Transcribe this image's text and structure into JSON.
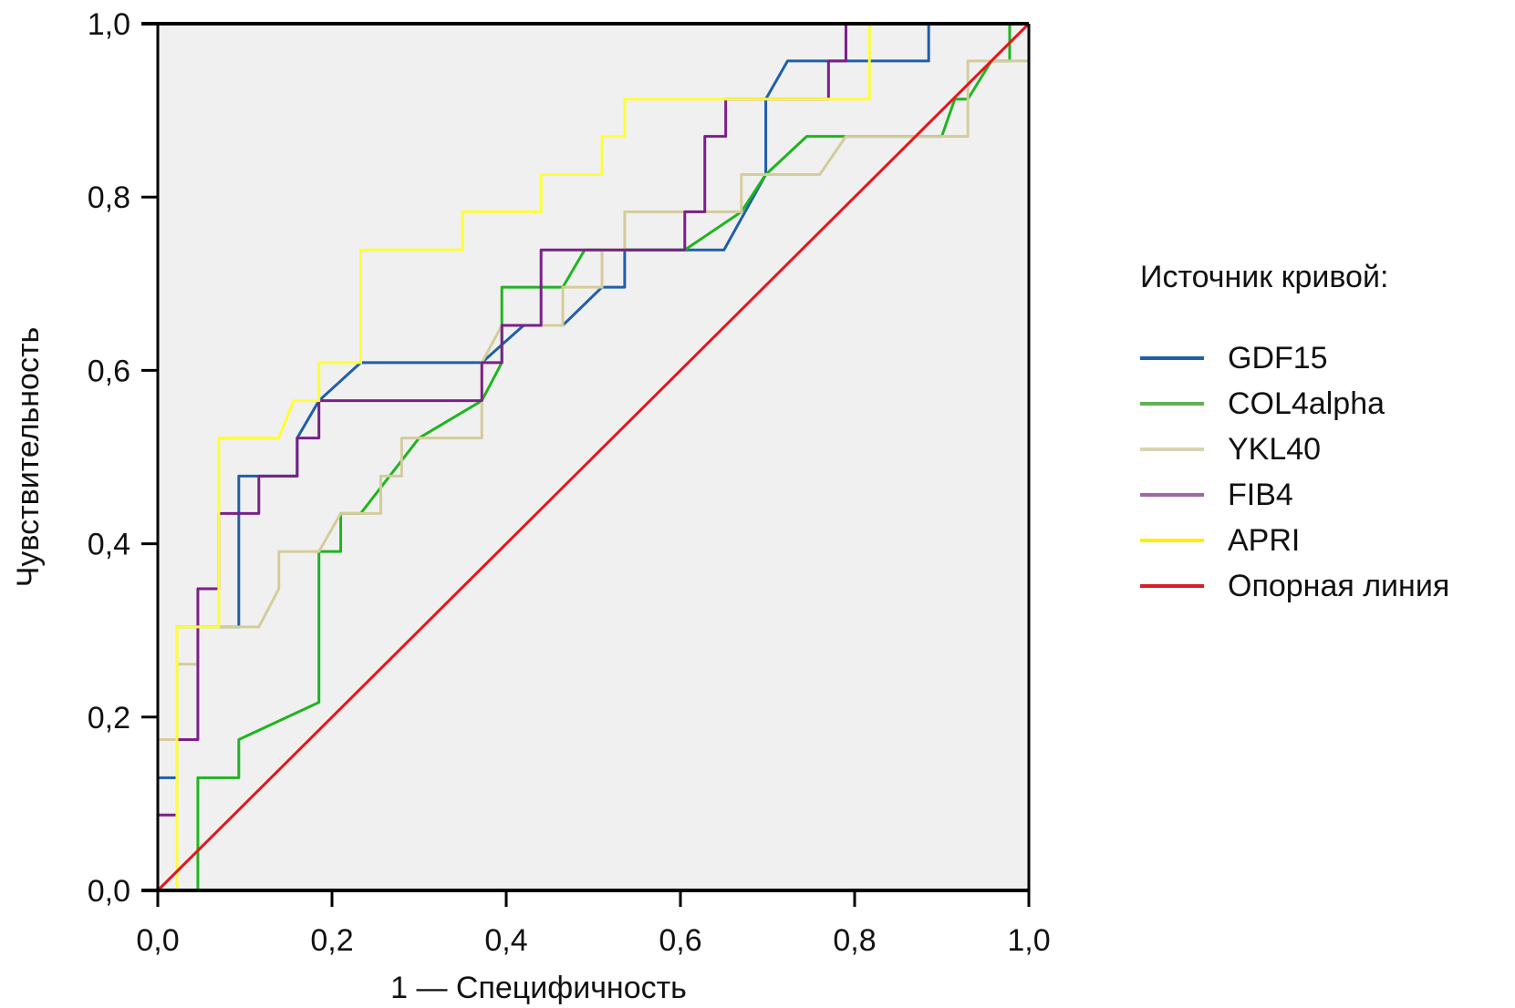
{
  "chart_data": {
    "type": "line",
    "title": "",
    "xlabel": "1 — Специфичность",
    "ylabel": "Чувствительность",
    "xlim": [
      0,
      1
    ],
    "ylim": [
      0,
      1
    ],
    "xticks": [
      "0,0",
      "0,2",
      "0,4",
      "0,6",
      "0,8",
      "1,0"
    ],
    "xtick_values": [
      0,
      0.2,
      0.4,
      0.6,
      0.8,
      1.0
    ],
    "yticks": [
      "0,0",
      "0,2",
      "0,4",
      "0,6",
      "0,8",
      "1,0"
    ],
    "ytick_values": [
      0,
      0.2,
      0.4,
      0.6,
      0.8,
      1.0
    ],
    "grid": false,
    "background": "#f0f0f0",
    "legend": {
      "title": "Источник кривой:",
      "placement": "right"
    },
    "series": [
      {
        "name": "GDF15",
        "color": "#1f5fa8",
        "points": [
          [
            0,
            0.13
          ],
          [
            0.022,
            0.13
          ],
          [
            0.022,
            0.304
          ],
          [
            0.093,
            0.304
          ],
          [
            0.093,
            0.478
          ],
          [
            0.16,
            0.478
          ],
          [
            0.16,
            0.522
          ],
          [
            0.185,
            0.565
          ],
          [
            0.233,
            0.609
          ],
          [
            0.372,
            0.609
          ],
          [
            0.42,
            0.652
          ],
          [
            0.465,
            0.652
          ],
          [
            0.51,
            0.696
          ],
          [
            0.536,
            0.696
          ],
          [
            0.536,
            0.739
          ],
          [
            0.65,
            0.739
          ],
          [
            0.698,
            0.826
          ],
          [
            0.698,
            0.913
          ],
          [
            0.723,
            0.957
          ],
          [
            0.885,
            0.957
          ],
          [
            0.885,
            1.0
          ],
          [
            1.0,
            1.0
          ]
        ]
      },
      {
        "name": "COL4alpha",
        "color": "#1fb51f",
        "points": [
          [
            0.046,
            0
          ],
          [
            0.046,
            0.13
          ],
          [
            0.093,
            0.13
          ],
          [
            0.093,
            0.174
          ],
          [
            0.185,
            0.217
          ],
          [
            0.185,
            0.391
          ],
          [
            0.21,
            0.391
          ],
          [
            0.21,
            0.435
          ],
          [
            0.233,
            0.435
          ],
          [
            0.3,
            0.522
          ],
          [
            0.372,
            0.565
          ],
          [
            0.395,
            0.609
          ],
          [
            0.395,
            0.696
          ],
          [
            0.465,
            0.696
          ],
          [
            0.49,
            0.739
          ],
          [
            0.605,
            0.739
          ],
          [
            0.67,
            0.783
          ],
          [
            0.698,
            0.826
          ],
          [
            0.745,
            0.87
          ],
          [
            0.9,
            0.87
          ],
          [
            0.915,
            0.913
          ],
          [
            0.93,
            0.913
          ],
          [
            0.957,
            0.957
          ],
          [
            0.978,
            0.957
          ],
          [
            0.978,
            1.0
          ],
          [
            1.0,
            1.0
          ]
        ]
      },
      {
        "name": "YKL40",
        "color": "#d4cc9a",
        "points": [
          [
            0,
            0.174
          ],
          [
            0.022,
            0.174
          ],
          [
            0.022,
            0.261
          ],
          [
            0.046,
            0.261
          ],
          [
            0.046,
            0.304
          ],
          [
            0.116,
            0.304
          ],
          [
            0.139,
            0.348
          ],
          [
            0.139,
            0.391
          ],
          [
            0.185,
            0.391
          ],
          [
            0.21,
            0.435
          ],
          [
            0.256,
            0.435
          ],
          [
            0.256,
            0.478
          ],
          [
            0.28,
            0.478
          ],
          [
            0.28,
            0.522
          ],
          [
            0.372,
            0.522
          ],
          [
            0.372,
            0.609
          ],
          [
            0.395,
            0.652
          ],
          [
            0.465,
            0.652
          ],
          [
            0.465,
            0.696
          ],
          [
            0.51,
            0.696
          ],
          [
            0.51,
            0.739
          ],
          [
            0.536,
            0.739
          ],
          [
            0.536,
            0.783
          ],
          [
            0.67,
            0.783
          ],
          [
            0.67,
            0.826
          ],
          [
            0.76,
            0.826
          ],
          [
            0.79,
            0.87
          ],
          [
            0.93,
            0.87
          ],
          [
            0.93,
            0.957
          ],
          [
            1.0,
            0.957
          ]
        ]
      },
      {
        "name": "FIB4",
        "color": "#7b1f8a",
        "points": [
          [
            0,
            0.087
          ],
          [
            0.022,
            0.087
          ],
          [
            0.022,
            0.174
          ],
          [
            0.046,
            0.174
          ],
          [
            0.046,
            0.348
          ],
          [
            0.07,
            0.348
          ],
          [
            0.07,
            0.435
          ],
          [
            0.116,
            0.435
          ],
          [
            0.116,
            0.478
          ],
          [
            0.16,
            0.478
          ],
          [
            0.16,
            0.522
          ],
          [
            0.185,
            0.522
          ],
          [
            0.185,
            0.565
          ],
          [
            0.372,
            0.565
          ],
          [
            0.372,
            0.609
          ],
          [
            0.395,
            0.609
          ],
          [
            0.395,
            0.652
          ],
          [
            0.44,
            0.652
          ],
          [
            0.44,
            0.739
          ],
          [
            0.605,
            0.739
          ],
          [
            0.605,
            0.783
          ],
          [
            0.628,
            0.783
          ],
          [
            0.628,
            0.87
          ],
          [
            0.652,
            0.87
          ],
          [
            0.652,
            0.913
          ],
          [
            0.77,
            0.913
          ],
          [
            0.77,
            0.957
          ],
          [
            0.79,
            0.957
          ],
          [
            0.79,
            1.0
          ],
          [
            1.0,
            1.0
          ]
        ]
      },
      {
        "name": "APRI",
        "color": "#ffff33",
        "points": [
          [
            0.022,
            0
          ],
          [
            0.022,
            0.304
          ],
          [
            0.07,
            0.304
          ],
          [
            0.07,
            0.522
          ],
          [
            0.139,
            0.522
          ],
          [
            0.156,
            0.565
          ],
          [
            0.185,
            0.565
          ],
          [
            0.185,
            0.609
          ],
          [
            0.233,
            0.609
          ],
          [
            0.233,
            0.739
          ],
          [
            0.35,
            0.739
          ],
          [
            0.35,
            0.783
          ],
          [
            0.44,
            0.783
          ],
          [
            0.44,
            0.826
          ],
          [
            0.51,
            0.826
          ],
          [
            0.51,
            0.87
          ],
          [
            0.536,
            0.87
          ],
          [
            0.536,
            0.913
          ],
          [
            0.817,
            0.913
          ],
          [
            0.817,
            1.0
          ],
          [
            1.0,
            1.0
          ]
        ]
      },
      {
        "name": "Опорная линия",
        "color": "#e8151b",
        "points": [
          [
            0,
            0
          ],
          [
            1,
            1
          ]
        ]
      }
    ]
  },
  "legend_swatch_colors": [
    "#1f5fa8",
    "#5fb24f",
    "#d8d3b0",
    "#a066a8",
    "#ffee00",
    "#d4202a"
  ]
}
